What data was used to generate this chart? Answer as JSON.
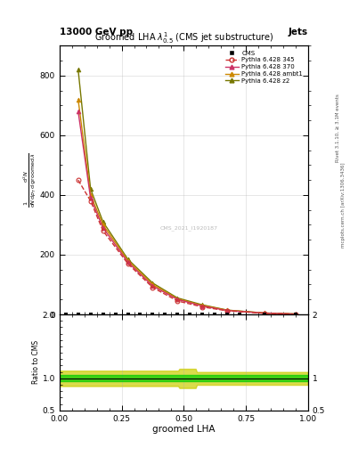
{
  "title_top": "13000 GeV pp",
  "title_right": "Jets",
  "plot_title": "Groomed LHA $\\lambda^{1}_{0.5}$ (CMS jet substructure)",
  "xlabel": "groomed LHA",
  "right_label": "Rivet 3.1.10, ≥ 3.1M events",
  "right_label2": "mcplots.cern.ch [arXiv:1306.3436]",
  "watermark": "CMS_2021_I1920187",
  "ratio_ylabel": "Ratio to CMS",
  "p345_x": [
    0.075,
    0.125,
    0.175,
    0.275,
    0.375,
    0.475,
    0.575,
    0.675,
    0.825,
    0.95
  ],
  "p345_y": [
    450,
    380,
    280,
    170,
    90,
    45,
    25,
    12,
    4,
    1
  ],
  "p370_x": [
    0.075,
    0.125,
    0.175,
    0.275,
    0.375,
    0.475,
    0.575,
    0.675,
    0.825,
    0.95
  ],
  "p370_y": [
    680,
    390,
    290,
    175,
    95,
    50,
    28,
    13,
    4.2,
    1.1
  ],
  "pambt1_x": [
    0.075,
    0.125,
    0.175,
    0.275,
    0.375,
    0.475,
    0.575,
    0.675,
    0.825,
    0.95
  ],
  "pambt1_y": [
    720,
    400,
    300,
    180,
    100,
    52,
    30,
    14,
    4.5,
    1.2
  ],
  "pz2_x": [
    0.075,
    0.125,
    0.175,
    0.275,
    0.375,
    0.475,
    0.575,
    0.675,
    0.825,
    0.95
  ],
  "pz2_y": [
    820,
    420,
    310,
    185,
    105,
    55,
    32,
    14.5,
    4.7,
    1.3
  ],
  "cms_x": [
    0.025,
    0.075,
    0.125,
    0.175,
    0.225,
    0.275,
    0.325,
    0.375,
    0.425,
    0.475,
    0.525,
    0.575,
    0.625,
    0.675,
    0.725,
    0.825,
    0.95
  ],
  "ylim_main": [
    0,
    900
  ],
  "yticks_main": [
    0,
    200,
    400,
    600,
    800
  ],
  "xlim": [
    0,
    1.0
  ],
  "xticks": [
    0.0,
    0.25,
    0.5,
    0.75,
    1.0
  ],
  "ratio_ylim": [
    0.5,
    2.0
  ],
  "ratio_yticks": [
    0.5,
    1.0,
    2.0
  ],
  "color_cms": "#000000",
  "color_p345": "#cc3333",
  "color_p370": "#cc3366",
  "color_pambt1": "#cc8800",
  "color_pz2": "#777700",
  "color_ratio_green": "#00cc00",
  "color_ratio_yellow": "#cccc00",
  "bg_color": "#ffffff",
  "grid_color": "#aaaaaa"
}
